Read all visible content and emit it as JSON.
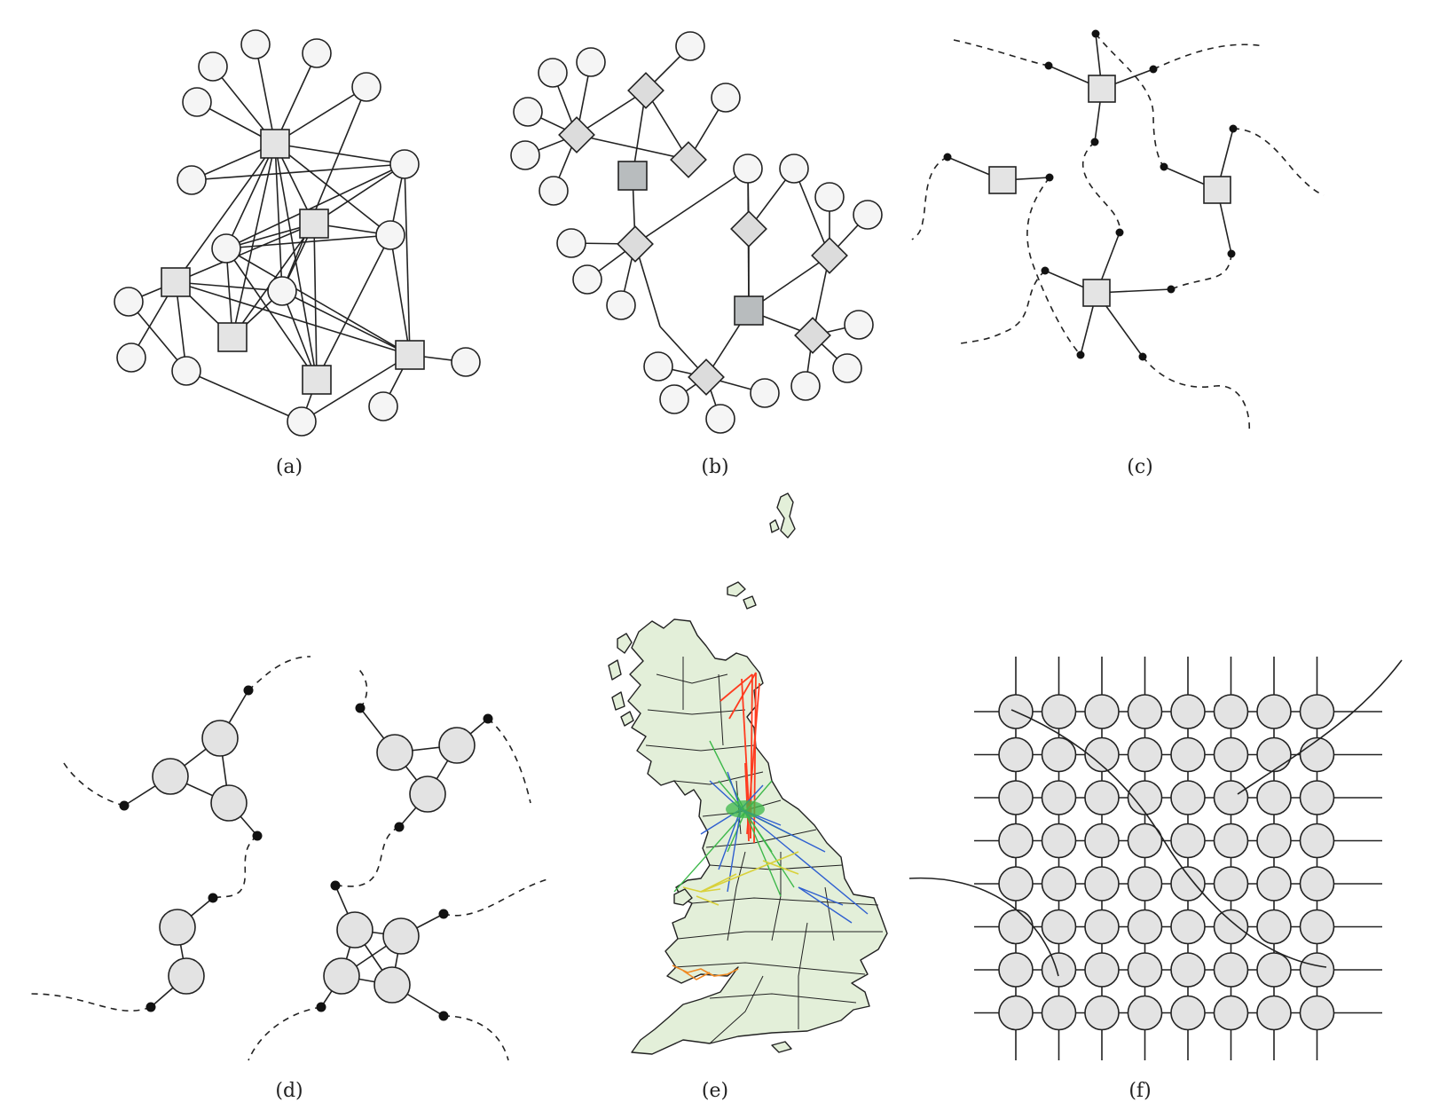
{
  "panels": [
    {
      "id": "a",
      "label": "(a)"
    },
    {
      "id": "b",
      "label": "(b)"
    },
    {
      "id": "c",
      "label": "(c)"
    },
    {
      "id": "d",
      "label": "(d)"
    },
    {
      "id": "e",
      "label": "(e)"
    },
    {
      "id": "f",
      "label": "(f)"
    }
  ],
  "colors": {
    "stroke": "#222222",
    "node_fill": "#f5f5f5",
    "light_square": "#e4e4e4",
    "dark_square": "#b8bcbe",
    "diamond": "#dcdcdc",
    "grid_node": "#e3e3e3",
    "map_land": "#e3efd9",
    "flow_red": "#ff3b1f",
    "flow_green": "#3db84a",
    "flow_blue": "#2f5fd0",
    "flow_yellow": "#d9d13a",
    "flow_orange": "#f08a24"
  },
  "grid_f": {
    "rows": 8,
    "cols": 8
  }
}
